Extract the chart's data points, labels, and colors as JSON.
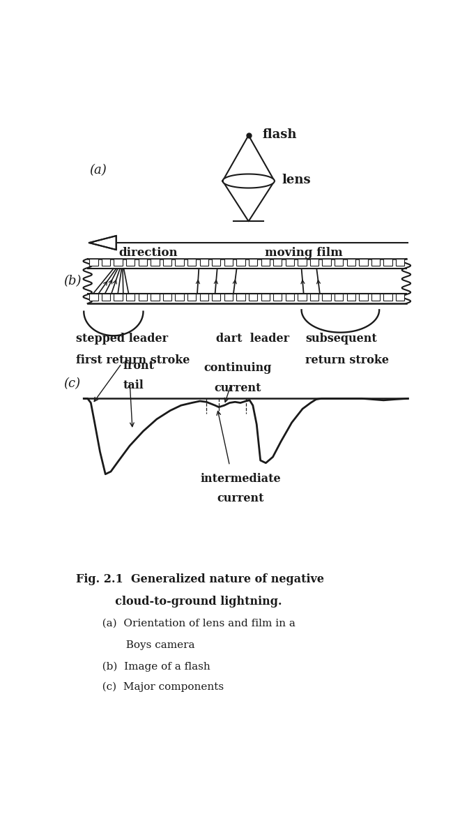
{
  "bg_color": "#ffffff",
  "line_color": "#1a1a1a",
  "label_flash": "flash",
  "label_a": "(a)",
  "label_b": "(b)",
  "label_c": "(c)",
  "label_lens": "lens",
  "label_direction": "direction",
  "label_moving_film": "moving film",
  "label_stepped": "stepped leader",
  "label_first_return": "first return stroke",
  "label_dart": "dart  leader",
  "label_subsequent": "subsequent",
  "label_return_stroke": "return stroke",
  "label_continuing": "continuing",
  "label_current": "current",
  "label_front": "front",
  "label_tail": "tail",
  "label_intermediate": "intermediate",
  "label_intermediate2": "current",
  "fig_line1": "Fig. 2.1  Generalized nature of negative",
  "fig_line2": "          cloud-to-ground lightning.",
  "fig_line3a": "   (a)  Orientation of lens and film in a",
  "fig_line3b": "          Boys camera",
  "fig_line4": "   (b)  Image of a flash",
  "fig_line5": "   (c)  Major components"
}
